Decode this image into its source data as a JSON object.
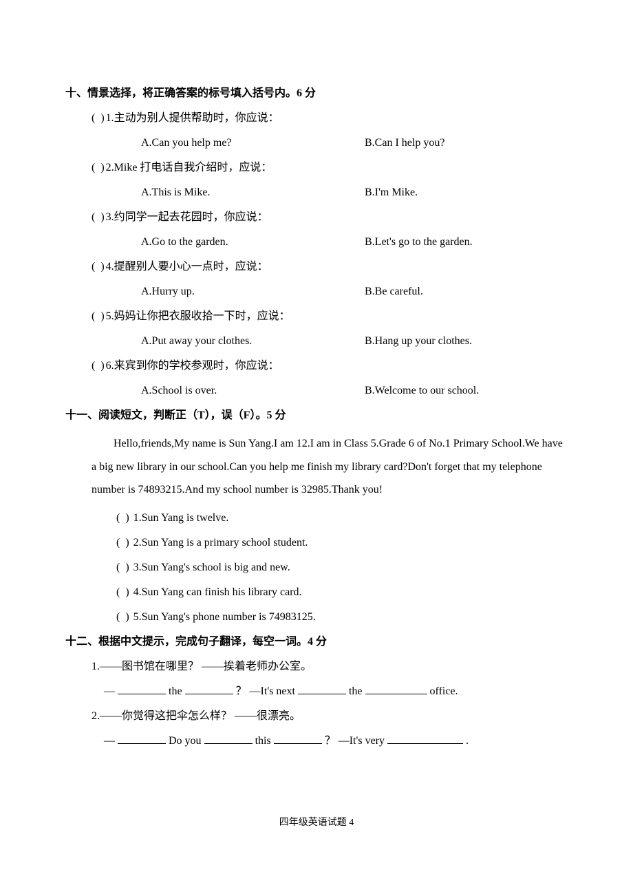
{
  "s10": {
    "title": "十、情景选择，将正确答案的标号填入括号内。6 分",
    "bracket": "(       )",
    "items": [
      {
        "q": "1.主动为别人提供帮助时，你应说：",
        "a": "A.Can you help me?",
        "b": "B.Can I help you?"
      },
      {
        "q": "2.Mike 打电话自我介绍时，应说：",
        "a": "A.This is Mike.",
        "b": "B.I'm Mike."
      },
      {
        "q": "3.约同学一起去花园时，你应说：",
        "a": "A.Go to the garden.",
        "b": "B.Let's go to the garden."
      },
      {
        "q": "4.提醒别人要小心一点时，应说：",
        "a": "A.Hurry up.",
        "b": "B.Be careful."
      },
      {
        "q": "5.妈妈让你把衣服收拾一下时，应说：",
        "a": "A.Put away your clothes.",
        "b": "B.Hang up your clothes."
      },
      {
        "q": "6.来宾到你的学校参观时，你应说：",
        "a": "A.School is over.",
        "b": "B.Welcome to our school."
      }
    ]
  },
  "s11": {
    "title": "十一、阅读短文，判断正（T），误（F）。5 分",
    "passage": "Hello,friends,My name is Sun Yang.I am 12.I am in Class 5.Grade 6 of No.1 Primary School.We have a big new library in our school.Can you help me finish my library card?Don't forget that my telephone number is 74893215.And my school number is 32985.Thank you!",
    "bracket": "(      )",
    "items": [
      "1.Sun Yang is twelve.",
      "2.Sun Yang is a primary school student.",
      "3.Sun Yang's school is big and new.",
      "4.Sun Yang can finish his library card.",
      "5.Sun Yang's phone number is 74983125."
    ]
  },
  "s12": {
    "title": "十二、根据中文提示，完成句子翻译，每空一词。4 分",
    "q1_cn": "1.——图书馆在哪里？  ——挨着老师办公室。",
    "q1_p1": "—",
    "q1_p2": "the",
    "q1_p3": "？  —It's next",
    "q1_p4": "the",
    "q1_p5": "office.",
    "q2_cn": "2.——你觉得这把伞怎么样？  ——很漂亮。",
    "q2_p1": "—",
    "q2_p2": "Do you",
    "q2_p3": "this",
    "q2_p4": "？  —It's very",
    "q2_p5": "."
  },
  "footer": "四年级英语试题   4"
}
